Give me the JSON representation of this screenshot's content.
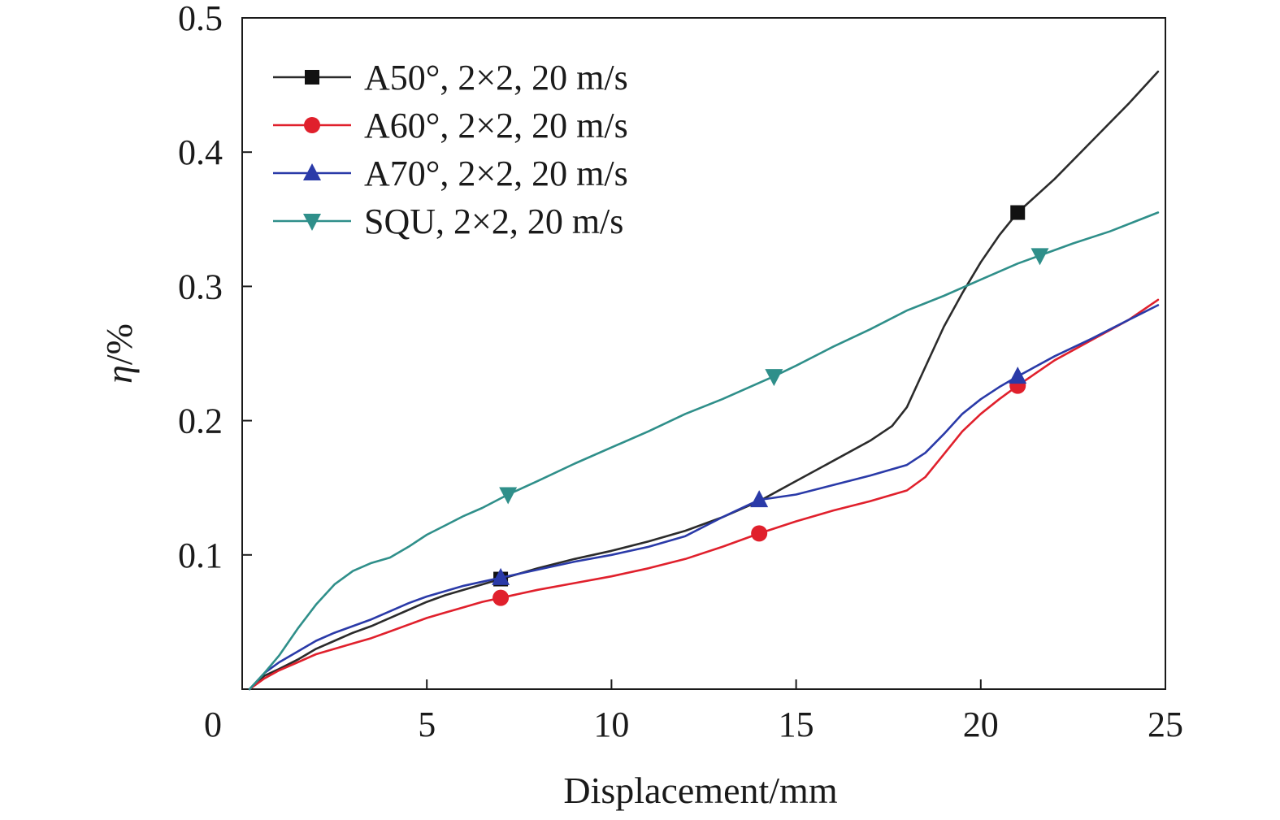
{
  "chart_data": {
    "type": "line",
    "title": "",
    "xlabel": "Displacement/mm",
    "ylabel_symbol": "η",
    "ylabel_unit": "/%",
    "xlim": [
      0,
      25
    ],
    "ylim": [
      0,
      0.5
    ],
    "x_ticks": [
      0,
      5,
      10,
      15,
      20,
      25
    ],
    "x_tick_labels": [
      "0",
      "5",
      "10",
      "15",
      "20",
      "25"
    ],
    "y_ticks": [
      0.1,
      0.2,
      0.3,
      0.4,
      0.5
    ],
    "y_tick_labels": [
      "0.1",
      "0.2",
      "0.3",
      "0.4",
      "0.5"
    ],
    "grid": false,
    "legend_position": "top-left",
    "series": [
      {
        "name": "A50°, 2×2, 20 m/s",
        "color": "#2b2b2b",
        "marker": "square",
        "marker_x": [
          7,
          21
        ],
        "x": [
          0.2,
          0.6,
          1.0,
          1.5,
          2.0,
          2.5,
          3.0,
          3.5,
          4.0,
          4.5,
          5.0,
          5.5,
          6.0,
          6.5,
          7.0,
          8.0,
          9.0,
          10.0,
          11.0,
          12.0,
          13.0,
          14.0,
          15.0,
          16.0,
          17.0,
          17.6,
          18.0,
          18.5,
          19.0,
          19.5,
          20.0,
          20.5,
          21.0,
          22.0,
          23.0,
          24.0,
          24.8
        ],
        "y": [
          0.0,
          0.01,
          0.015,
          0.022,
          0.03,
          0.036,
          0.042,
          0.047,
          0.053,
          0.059,
          0.065,
          0.07,
          0.074,
          0.078,
          0.082,
          0.09,
          0.097,
          0.103,
          0.11,
          0.118,
          0.128,
          0.14,
          0.155,
          0.17,
          0.185,
          0.196,
          0.21,
          0.24,
          0.27,
          0.295,
          0.318,
          0.338,
          0.355,
          0.38,
          0.408,
          0.436,
          0.46
        ]
      },
      {
        "name": "A60°, 2×2, 20 m/s",
        "color": "#e0202c",
        "marker": "circle",
        "marker_x": [
          7,
          14,
          21
        ],
        "x": [
          0.2,
          0.6,
          1.0,
          1.5,
          2.0,
          2.5,
          3.0,
          3.5,
          4.0,
          4.5,
          5.0,
          5.5,
          6.0,
          6.5,
          7.0,
          8.0,
          9.0,
          10.0,
          11.0,
          12.0,
          13.0,
          14.0,
          15.0,
          16.0,
          17.0,
          18.0,
          18.5,
          19.0,
          19.5,
          20.0,
          20.5,
          21.0,
          22.0,
          23.0,
          24.0,
          24.8
        ],
        "y": [
          0.0,
          0.008,
          0.014,
          0.02,
          0.026,
          0.03,
          0.034,
          0.038,
          0.043,
          0.048,
          0.053,
          0.057,
          0.061,
          0.065,
          0.068,
          0.074,
          0.079,
          0.084,
          0.09,
          0.097,
          0.106,
          0.116,
          0.125,
          0.133,
          0.14,
          0.148,
          0.158,
          0.175,
          0.192,
          0.205,
          0.216,
          0.226,
          0.245,
          0.26,
          0.275,
          0.29
        ]
      },
      {
        "name": "A70°, 2×2, 20 m/s",
        "color": "#2a3aa8",
        "marker": "triangle-up",
        "marker_x": [
          7,
          14,
          21
        ],
        "x": [
          0.2,
          0.6,
          1.0,
          1.5,
          2.0,
          2.5,
          3.0,
          3.5,
          4.0,
          4.5,
          5.0,
          5.5,
          6.0,
          6.5,
          7.0,
          8.0,
          9.0,
          10.0,
          11.0,
          12.0,
          13.0,
          14.0,
          15.0,
          16.0,
          17.0,
          18.0,
          18.5,
          19.0,
          19.5,
          20.0,
          20.5,
          21.0,
          22.0,
          23.0,
          24.0,
          24.8
        ],
        "y": [
          0.0,
          0.012,
          0.02,
          0.028,
          0.036,
          0.042,
          0.047,
          0.052,
          0.058,
          0.064,
          0.069,
          0.073,
          0.077,
          0.08,
          0.083,
          0.089,
          0.095,
          0.1,
          0.106,
          0.114,
          0.128,
          0.141,
          0.145,
          0.152,
          0.159,
          0.167,
          0.176,
          0.19,
          0.205,
          0.216,
          0.225,
          0.233,
          0.248,
          0.261,
          0.275,
          0.286
        ]
      },
      {
        "name": "SQU, 2×2, 20 m/s",
        "color": "#2f8f8a",
        "marker": "triangle-down",
        "marker_x": [
          7.2,
          14.4,
          21.6
        ],
        "x": [
          0.2,
          0.6,
          1.0,
          1.5,
          2.0,
          2.5,
          3.0,
          3.5,
          4.0,
          4.5,
          5.0,
          5.5,
          6.0,
          6.5,
          7.2,
          8.0,
          9.0,
          10.0,
          11.0,
          12.0,
          13.0,
          14.4,
          15.0,
          16.0,
          17.0,
          18.0,
          19.0,
          20.0,
          21.0,
          21.6,
          22.5,
          23.5,
          24.8
        ],
        "y": [
          0.0,
          0.012,
          0.025,
          0.045,
          0.063,
          0.078,
          0.088,
          0.094,
          0.098,
          0.106,
          0.115,
          0.122,
          0.129,
          0.135,
          0.145,
          0.155,
          0.168,
          0.18,
          0.192,
          0.205,
          0.216,
          0.233,
          0.241,
          0.255,
          0.268,
          0.282,
          0.293,
          0.305,
          0.317,
          0.323,
          0.332,
          0.341,
          0.355
        ]
      }
    ]
  }
}
